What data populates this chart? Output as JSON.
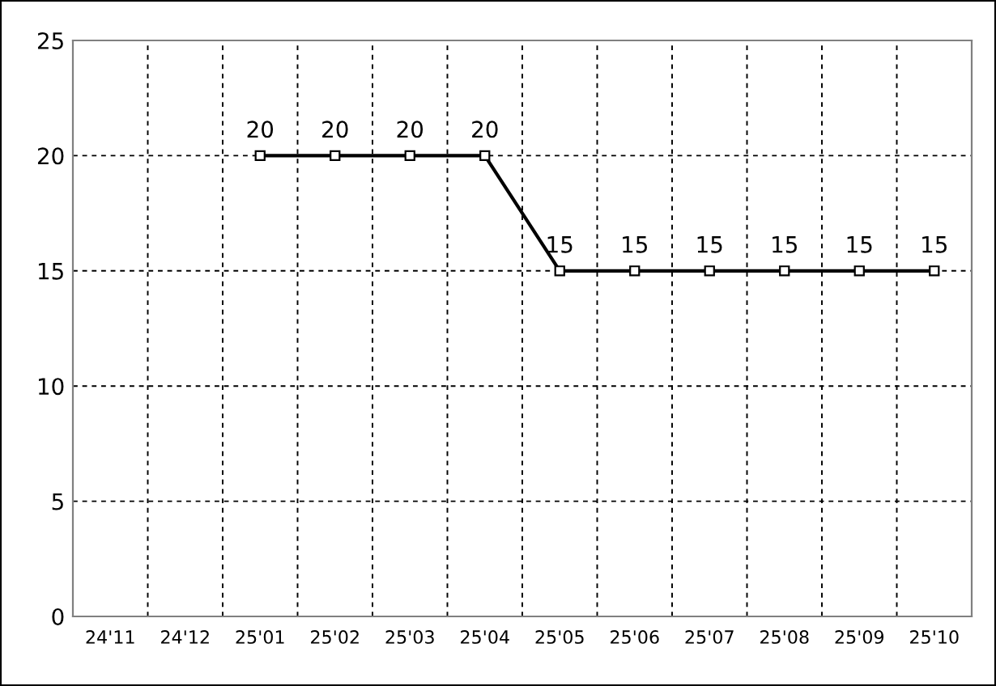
{
  "chart_data": {
    "type": "line",
    "categories": [
      "24'11",
      "24'12",
      "25'01",
      "25'02",
      "25'03",
      "25'04",
      "25'05",
      "25'06",
      "25'07",
      "25'08",
      "25'09",
      "25'10"
    ],
    "series": [
      {
        "color": "#000000",
        "values": [
          null,
          null,
          20,
          20,
          20,
          20,
          15,
          15,
          15,
          15,
          15,
          15
        ]
      }
    ],
    "ylim": [
      0,
      25
    ],
    "yticks": [
      0,
      5,
      10,
      15,
      20,
      25
    ],
    "grid": true,
    "data_labels": true,
    "marker": "square",
    "line_style": "solid"
  }
}
